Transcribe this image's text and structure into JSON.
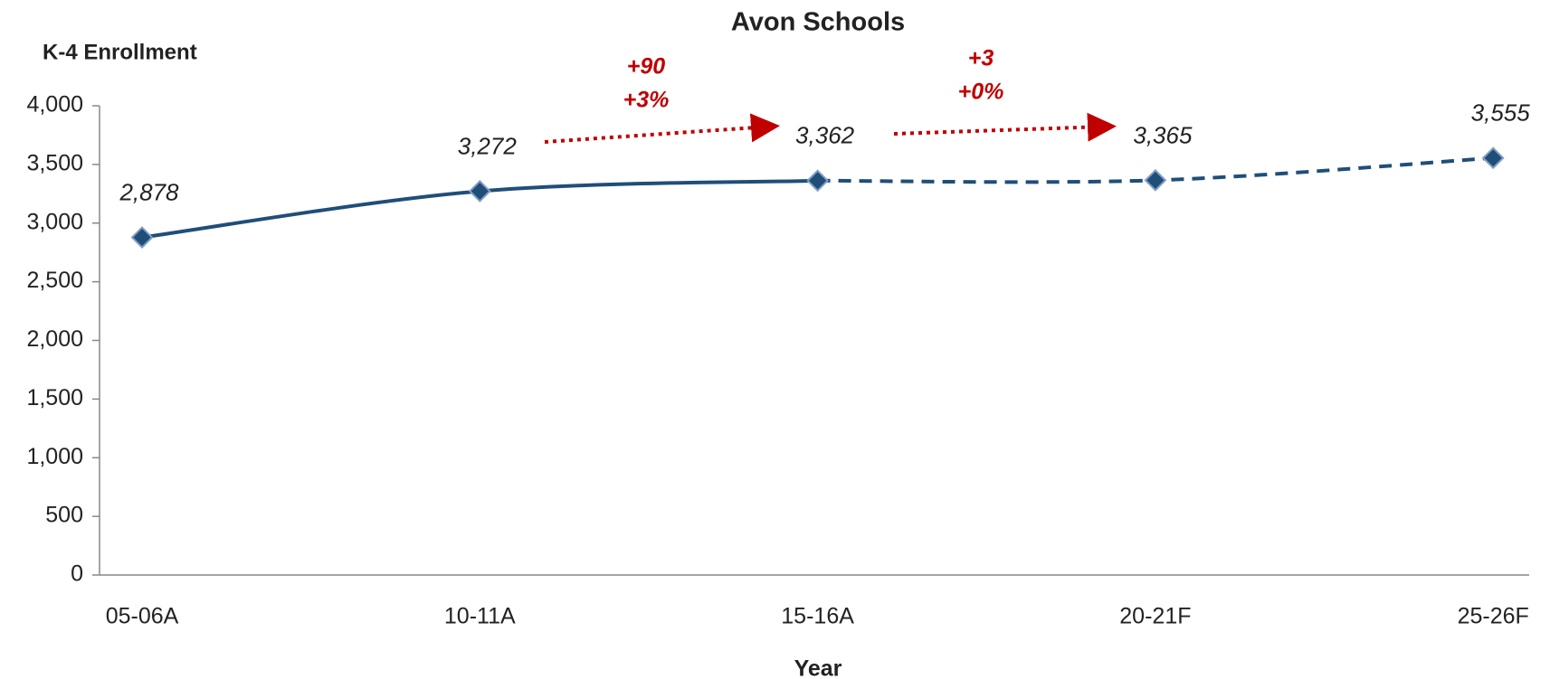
{
  "chart_data": {
    "type": "line",
    "title": "Avon Schools",
    "y_label": "K-4 Enrollment",
    "x_label": "Year",
    "categories": [
      "05-06A",
      "10-11A",
      "15-16A",
      "20-21F",
      "25-26F"
    ],
    "series": [
      {
        "name": "K-4 Enrollment",
        "color": "#1f4e79",
        "values": [
          2878,
          3272,
          3362,
          3365,
          3555
        ],
        "value_labels": [
          "2,878",
          "3,272",
          "3,362",
          "3,365",
          "3,555"
        ],
        "dashed_from_index": 2
      }
    ],
    "ylim": [
      0,
      4000
    ],
    "yticks": [
      0,
      500,
      {
        "value": 1000,
        "label": "1,000"
      },
      {
        "value": 1500,
        "label": "1,500"
      },
      {
        "value": 2000,
        "label": "2,000"
      },
      {
        "value": 2500,
        "label": "2,500"
      },
      {
        "value": 3000,
        "label": "3,000"
      },
      {
        "value": 3500,
        "label": "3,500"
      },
      {
        "value": 4000,
        "label": "4,000"
      }
    ],
    "grid": false,
    "annotations": [
      {
        "lines": [
          "+90",
          "+3%"
        ],
        "color": "#c00000"
      },
      {
        "lines": [
          "+3",
          "+0%"
        ],
        "color": "#c00000"
      }
    ]
  }
}
